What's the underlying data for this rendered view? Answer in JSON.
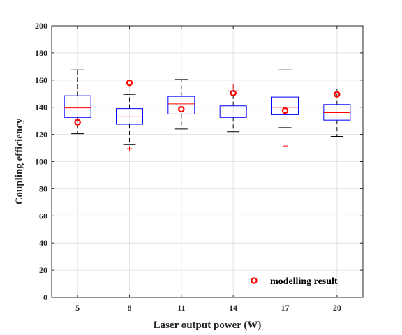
{
  "chart_data": {
    "type": "boxplot",
    "title": "",
    "xlabel": "Laser output power (W)",
    "ylabel": "Coupling efficiency",
    "ylim": [
      0,
      200
    ],
    "yticks": [
      0,
      20,
      40,
      60,
      80,
      100,
      120,
      140,
      160,
      180,
      200
    ],
    "grid": true,
    "legend_position": "bottom-right",
    "categories": [
      "5",
      "8",
      "11",
      "14",
      "17",
      "20"
    ],
    "boxes": [
      {
        "category": "5",
        "whisker_low": 120.5,
        "q1": 132.5,
        "median": 139.5,
        "q3": 148.5,
        "whisker_high": 167.5,
        "outliers": []
      },
      {
        "category": "8",
        "whisker_low": 112.5,
        "q1": 127.5,
        "median": 133.0,
        "q3": 139.0,
        "whisker_high": 149.5,
        "outliers": [
          109.5
        ]
      },
      {
        "category": "11",
        "whisker_low": 124.0,
        "q1": 135.0,
        "median": 142.5,
        "q3": 148.0,
        "whisker_high": 160.5,
        "outliers": []
      },
      {
        "category": "14",
        "whisker_low": 122.0,
        "q1": 132.5,
        "median": 136.5,
        "q3": 141.0,
        "whisker_high": 152.0,
        "outliers": [
          155.0
        ]
      },
      {
        "category": "17",
        "whisker_low": 125.0,
        "q1": 134.5,
        "median": 140.0,
        "q3": 147.5,
        "whisker_high": 167.5,
        "outliers": [
          111.5
        ]
      },
      {
        "category": "20",
        "whisker_low": 118.5,
        "q1": 130.5,
        "median": 136.0,
        "q3": 142.0,
        "whisker_high": 153.5,
        "outliers": []
      }
    ],
    "markers": {
      "name": "modelling result",
      "values": [
        129.0,
        158.0,
        138.5,
        150.5,
        137.5,
        149.5
      ]
    },
    "colors": {
      "box": "#0000ff",
      "median": "#ff0000",
      "whisker": "#000000",
      "outlier": "#ff0000",
      "marker": "#ff0000",
      "grid": "#dcdcdc",
      "axis": "#262626"
    }
  }
}
